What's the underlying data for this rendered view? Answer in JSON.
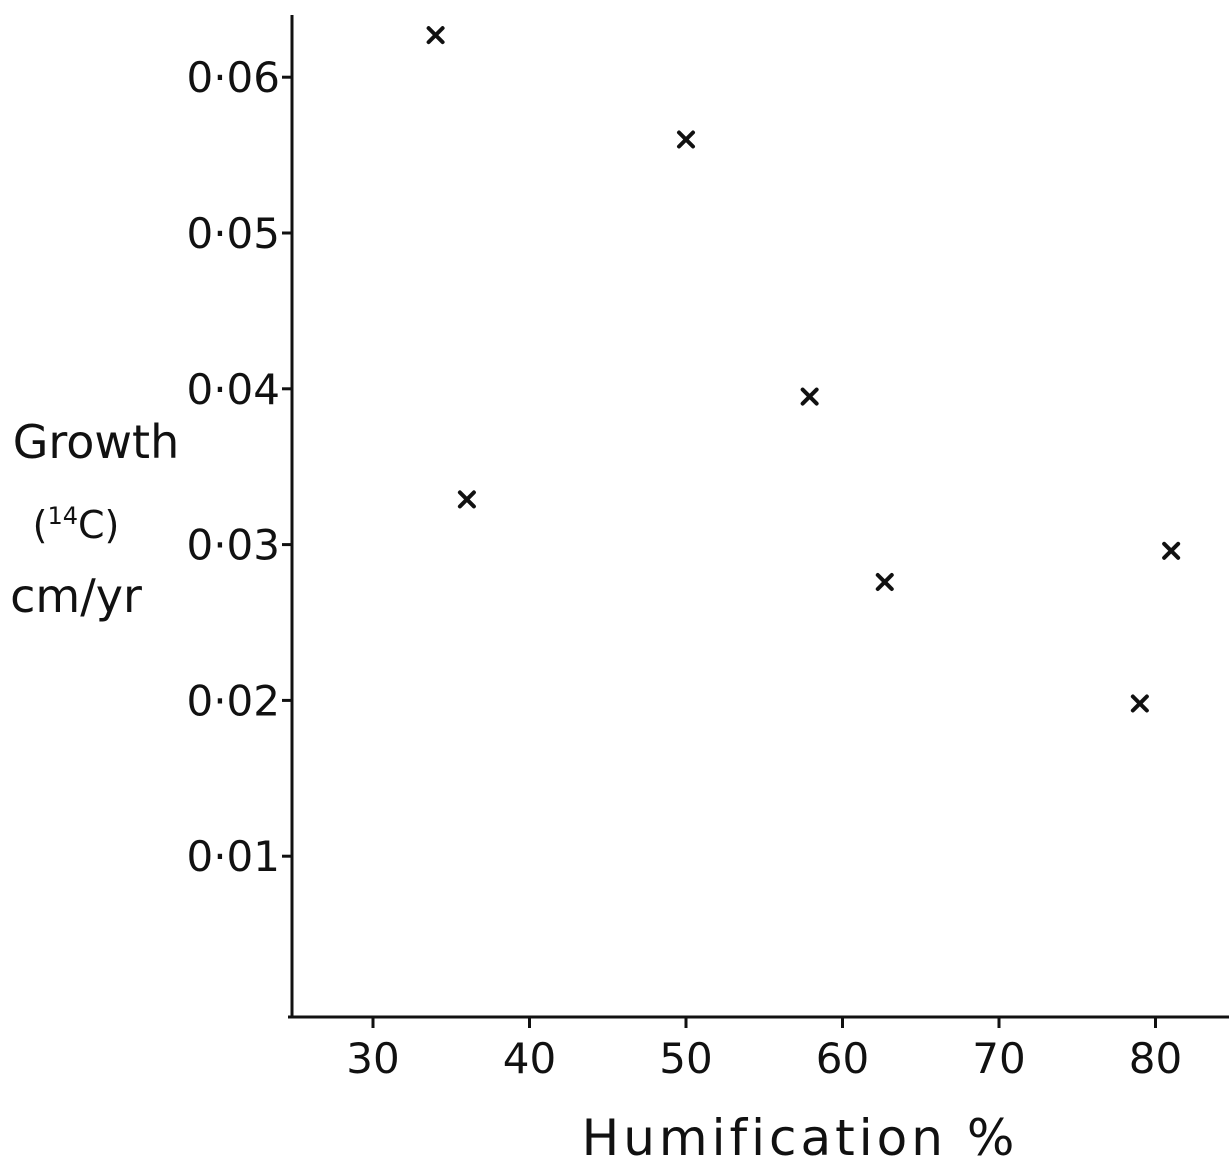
{
  "chart_data": {
    "type": "scatter",
    "title": "",
    "xlabel": "Humification %",
    "ylabel_lines": [
      "Growth",
      "(",
      "14",
      "C)",
      "cm/yr"
    ],
    "xlim": [
      25,
      85
    ],
    "ylim": [
      0,
      0.065
    ],
    "x_ticks": [
      30,
      40,
      50,
      60,
      70,
      80
    ],
    "x_tick_labels": [
      "30",
      "40",
      "50",
      "60",
      "70",
      "80"
    ],
    "y_ticks": [
      0.01,
      0.02,
      0.03,
      0.04,
      0.05,
      0.06
    ],
    "y_tick_labels": [
      "0·01",
      "0·02",
      "0·03",
      "0·04",
      "0·05",
      "0·06"
    ],
    "marker": "x",
    "grid": false,
    "points": [
      {
        "x": 34.0,
        "y": 0.0627
      },
      {
        "x": 36.0,
        "y": 0.0329
      },
      {
        "x": 50.0,
        "y": 0.056
      },
      {
        "x": 57.9,
        "y": 0.0395
      },
      {
        "x": 62.7,
        "y": 0.0276
      },
      {
        "x": 79.0,
        "y": 0.0198
      },
      {
        "x": 81.0,
        "y": 0.0296
      }
    ]
  }
}
